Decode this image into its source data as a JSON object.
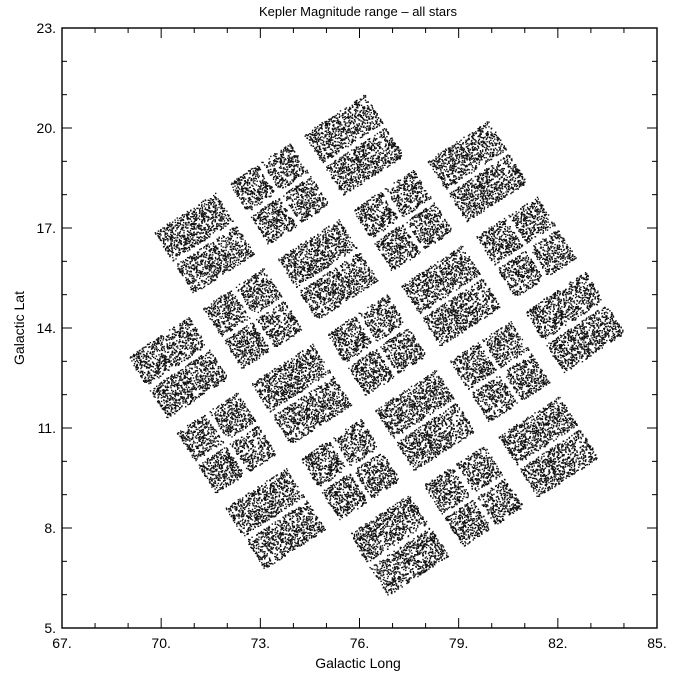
{
  "chart_data": {
    "type": "scatter",
    "title": "Kepler Magnitude range – all stars",
    "xlabel": "Galactic Long",
    "ylabel": "Galactic Lat",
    "xlim": [
      67,
      85
    ],
    "ylim": [
      5,
      23
    ],
    "xticks": [
      "67.",
      "70.",
      "73.",
      "76.",
      "79.",
      "82.",
      "85."
    ],
    "yticks": [
      "5.",
      "8.",
      "11.",
      "14.",
      "17.",
      "20.",
      "23."
    ],
    "grid": false,
    "legend": "none",
    "marker_color": "#111111",
    "field_center": [
      76.5,
      13.5
    ],
    "field_rotation_deg": 33,
    "module_size_deg": 2.2,
    "module_spacing_deg": 2.7,
    "modules": [
      {
        "row": -2,
        "col": -1
      },
      {
        "row": -2,
        "col": 0
      },
      {
        "row": -2,
        "col": 1
      },
      {
        "row": -1,
        "col": -2
      },
      {
        "row": -1,
        "col": -1
      },
      {
        "row": -1,
        "col": 0
      },
      {
        "row": -1,
        "col": 1
      },
      {
        "row": -1,
        "col": 2
      },
      {
        "row": 0,
        "col": -2
      },
      {
        "row": 0,
        "col": -1
      },
      {
        "row": 0,
        "col": 0
      },
      {
        "row": 0,
        "col": 1
      },
      {
        "row": 0,
        "col": 2
      },
      {
        "row": 1,
        "col": -2
      },
      {
        "row": 1,
        "col": -1
      },
      {
        "row": 1,
        "col": 0
      },
      {
        "row": 1,
        "col": 1
      },
      {
        "row": 1,
        "col": 2
      },
      {
        "row": 2,
        "col": -1
      },
      {
        "row": 2,
        "col": 0
      },
      {
        "row": 2,
        "col": 1
      }
    ]
  }
}
